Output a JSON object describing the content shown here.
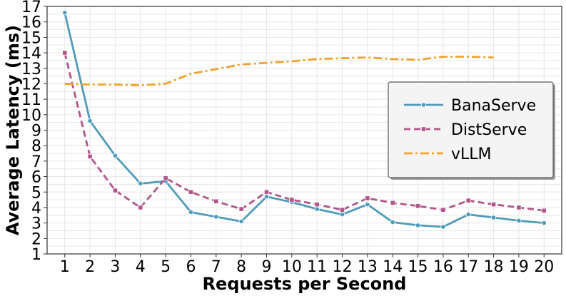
{
  "chart_data": {
    "type": "line",
    "xlabel": "Requests per Second",
    "ylabel": "Average Latency (ms)",
    "xlim": [
      0.3,
      20.7
    ],
    "ylim": [
      1,
      17
    ],
    "x": [
      1,
      2,
      3,
      4,
      5,
      6,
      7,
      8,
      9,
      10,
      11,
      12,
      13,
      14,
      15,
      16,
      17,
      18,
      19,
      20
    ],
    "xticks": [
      1,
      2,
      3,
      4,
      5,
      6,
      7,
      8,
      9,
      10,
      11,
      12,
      13,
      14,
      15,
      16,
      17,
      18,
      19,
      20
    ],
    "yticks": [
      1,
      2,
      3,
      4,
      5,
      6,
      7,
      8,
      9,
      10,
      11,
      12,
      13,
      14,
      15,
      16,
      17
    ],
    "grid": true,
    "legend_position": "right",
    "series": [
      {
        "name": "BanaServe",
        "color": "#4f9bb9",
        "style": "solid",
        "marker": "circle",
        "x": [
          1,
          2,
          3,
          4,
          5,
          6,
          7,
          8,
          9,
          10,
          11,
          12,
          13,
          14,
          15,
          16,
          17,
          18,
          19,
          20
        ],
        "values": [
          16.6,
          9.6,
          7.35,
          5.55,
          5.7,
          3.7,
          3.4,
          3.1,
          4.7,
          4.35,
          3.9,
          3.55,
          4.2,
          3.05,
          2.85,
          2.75,
          3.55,
          3.35,
          3.15,
          3.0
        ]
      },
      {
        "name": "DistServe",
        "color": "#b1568a",
        "style": "dashed",
        "marker": "square",
        "x": [
          1,
          2,
          3,
          4,
          5,
          6,
          7,
          8,
          9,
          10,
          11,
          12,
          13,
          14,
          15,
          16,
          17,
          18,
          19,
          20
        ],
        "values": [
          14.0,
          7.3,
          5.1,
          4.0,
          5.9,
          5.0,
          4.4,
          3.9,
          5.0,
          4.5,
          4.2,
          3.85,
          4.6,
          4.3,
          4.1,
          3.85,
          4.45,
          4.2,
          4.0,
          3.8
        ]
      },
      {
        "name": "vLLM",
        "color": "#f0a330",
        "style": "dashdot",
        "marker": "none",
        "x": [
          1,
          2,
          3,
          4,
          5,
          6,
          7,
          8,
          9,
          10,
          11,
          12,
          13,
          14,
          15,
          16,
          17,
          18
        ],
        "values": [
          12.0,
          11.95,
          11.95,
          11.9,
          12.0,
          12.65,
          12.95,
          13.25,
          13.35,
          13.45,
          13.6,
          13.65,
          13.7,
          13.6,
          13.55,
          13.75,
          13.75,
          13.7
        ]
      }
    ]
  }
}
